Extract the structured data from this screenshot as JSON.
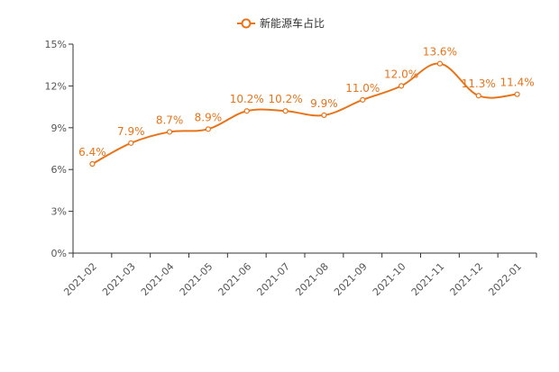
{
  "chart_data": {
    "type": "line",
    "legend": {
      "label": "新能源车占比",
      "position": "top-center"
    },
    "x": [
      "2021-02",
      "2021-03",
      "2021-04",
      "2021-05",
      "2021-06",
      "2021-07",
      "2021-08",
      "2021-09",
      "2021-10",
      "2021-11",
      "2021-12",
      "2022-01"
    ],
    "series": [
      {
        "name": "新能源车占比",
        "values": [
          6.4,
          7.9,
          8.7,
          8.9,
          10.2,
          10.2,
          9.9,
          11.0,
          12.0,
          13.6,
          11.3,
          11.4
        ],
        "labels": [
          "6.4%",
          "7.9%",
          "8.7%",
          "8.9%",
          "10.2%",
          "10.2%",
          "9.9%",
          "11.0%",
          "12.0%",
          "13.6%",
          "11.3%",
          "11.4%"
        ]
      }
    ],
    "y_ticks": [
      0,
      3,
      6,
      9,
      12,
      15
    ],
    "y_tick_labels": [
      "0%",
      "3%",
      "6%",
      "9%",
      "12%",
      "15%"
    ],
    "ylim": [
      0,
      15
    ],
    "smooth": true,
    "grid": false,
    "color": "#e8741a"
  }
}
